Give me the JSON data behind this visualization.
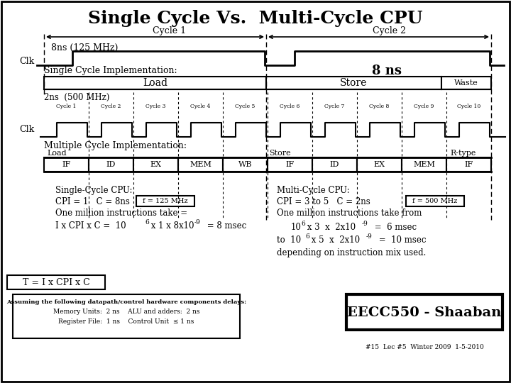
{
  "title": "Single Cycle Vs.  Multi-Cycle CPU",
  "bg_color": "#ffffff",
  "cycle1_label": "Cycle 1",
  "cycle2_label": "Cycle 2",
  "freq1_label": "8ns (125 MHz)",
  "single_impl_label": "Single Cycle Implementation:",
  "eight_ns_label": "8 ns",
  "multi_impl_label": "Multiple Cycle Implementation:",
  "load_label": "Load",
  "store_label": "Store",
  "waste_label": "Waste",
  "freq2_label": "2ns  (500 MHz)",
  "clk_label": "Clk",
  "cycles_small": [
    "Cycle 1",
    "Cycle 2",
    "Cycle 3",
    "Cycle 4",
    "Cycle 5",
    "Cycle 6",
    "Cycle 7",
    "Cycle 8",
    "Cycle 9",
    "Cycle 10"
  ],
  "mc_load_label": "Load",
  "mc_store_label": "Store",
  "mc_rtype_label": "R-type",
  "pipeline_stages": [
    "IF",
    "ID",
    "EX",
    "MEM",
    "WB",
    "IF",
    "ID",
    "EX",
    "MEM",
    "IF"
  ],
  "f125_label": "f = 125 MHz",
  "f500_label": "f = 500 MHz",
  "formula_label": "T = I x CPI x C",
  "fn_line1": "Assuming the following datapath/control hardware components delays:",
  "fn_line2": "Memory Units:  2 ns    ALU and adders:  2 ns",
  "fn_line3": "Register File:  1 ns    Control Unit  ≤ 1 ns",
  "eecc_label": "EECC550 - Shaaban",
  "bottom_label": "#15  Lec #5  Winter 2009  1-5-2010",
  "L": 62,
  "M": 375,
  "R": 692
}
